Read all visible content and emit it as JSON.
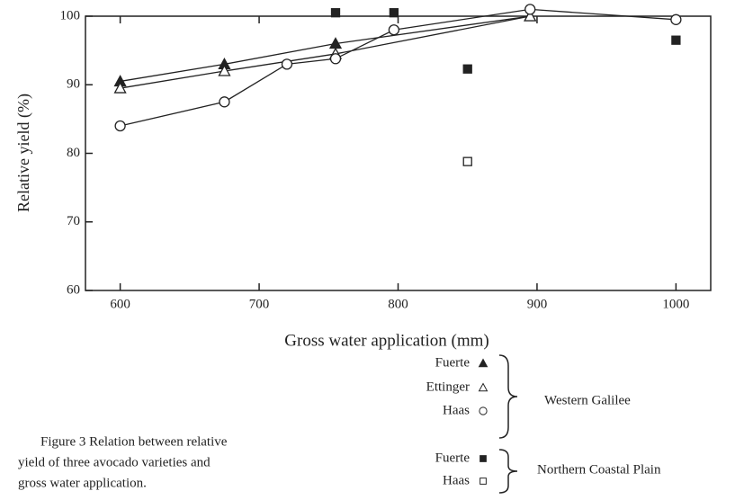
{
  "chart_data": {
    "type": "scatter",
    "xlabel": "Gross water application (mm)",
    "ylabel": "Relative yield (%)",
    "xlim": [
      575,
      1025
    ],
    "ylim": [
      60,
      100
    ],
    "xticks": [
      600,
      700,
      800,
      900,
      1000
    ],
    "yticks": [
      60,
      70,
      80,
      90,
      100
    ],
    "series": [
      {
        "name": "Fuerte",
        "marker": "triangle-filled",
        "line": true,
        "color": "#222",
        "x": [
          600,
          675,
          755,
          895
        ],
        "values": [
          90.5,
          93,
          96,
          100
        ]
      },
      {
        "name": "Ettinger",
        "marker": "triangle-open",
        "line": true,
        "color": "#222",
        "x": [
          600,
          675,
          755,
          895
        ],
        "values": [
          89.5,
          92,
          94.5,
          100
        ]
      },
      {
        "name": "Haas",
        "marker": "circle-open",
        "line": true,
        "color": "#222",
        "x": [
          600,
          675,
          720,
          755,
          797,
          895,
          1000
        ],
        "values": [
          84,
          87.5,
          93,
          93.8,
          98,
          101,
          99.5
        ]
      },
      {
        "name": "Fuerte",
        "marker": "square-filled",
        "line": false,
        "color": "#222",
        "x": [
          755,
          797,
          850,
          1000
        ],
        "values": [
          100.5,
          100.5,
          92.3,
          96.5
        ]
      },
      {
        "name": "Haas",
        "marker": "square-open",
        "line": false,
        "color": "#222",
        "x": [
          850
        ],
        "values": [
          78.8
        ]
      }
    ],
    "legend_groups": [
      "Western Galilee",
      "Northern Coastal Plain"
    ],
    "caption": [
      "Figure 3   Relation between relative",
      "yield of three avocado varieties and",
      "gross water application."
    ]
  }
}
